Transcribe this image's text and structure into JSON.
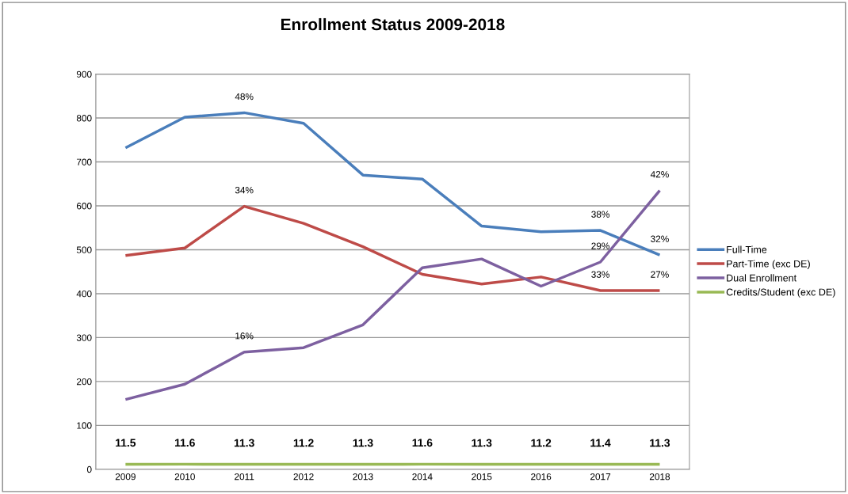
{
  "chart_data": {
    "type": "line",
    "title": "Enrollment Status 2009-2018",
    "categories": [
      "2009",
      "2010",
      "2011",
      "2012",
      "2013",
      "2014",
      "2015",
      "2016",
      "2017",
      "2018"
    ],
    "series": [
      {
        "name": "Full-Time",
        "color": "#4a7ebb",
        "values": [
          732,
          802,
          812,
          788,
          670,
          661,
          554,
          541,
          544,
          488
        ]
      },
      {
        "name": "Part-Time (exc DE)",
        "color": "#be4b48",
        "values": [
          487,
          504,
          599,
          560,
          507,
          444,
          422,
          438,
          407,
          407
        ]
      },
      {
        "name": "Dual Enrollment",
        "color": "#7d60a0",
        "values": [
          159,
          194,
          267,
          277,
          329,
          459,
          479,
          417,
          472,
          635
        ]
      },
      {
        "name": "Credits/Student (exc DE)",
        "color": "#98b954",
        "values": [
          11.5,
          11.6,
          11.3,
          11.2,
          11.3,
          11.6,
          11.3,
          11.2,
          11.4,
          11.3
        ],
        "data_labels": true
      }
    ],
    "annotations": [
      {
        "text": "48%",
        "x": "2011",
        "y": 812
      },
      {
        "text": "34%",
        "x": "2011",
        "y": 599
      },
      {
        "text": "16%",
        "x": "2011",
        "y": 267
      },
      {
        "text": "38%",
        "x": "2017",
        "y": 544
      },
      {
        "text": "29%",
        "x": "2017",
        "y": 472
      },
      {
        "text": "33%",
        "x": "2017",
        "y": 407
      },
      {
        "text": "42%",
        "x": "2018",
        "y": 635
      },
      {
        "text": "32%",
        "x": "2018",
        "y": 488
      },
      {
        "text": "27%",
        "x": "2018",
        "y": 407
      }
    ],
    "ylim": [
      0,
      900
    ],
    "yticks": [
      0,
      100,
      200,
      300,
      400,
      500,
      600,
      700,
      800,
      900
    ],
    "grid": "y",
    "legend": "right",
    "marker": "none",
    "line_style": "solid"
  }
}
